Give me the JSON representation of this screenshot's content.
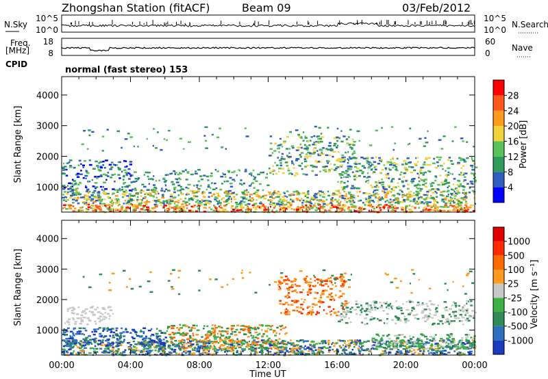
{
  "header": {
    "title": "Zhongshan Station (fitACF)",
    "beam": "Beam 09",
    "date": "03/Feb/2012"
  },
  "top_panels": {
    "nsky_label": "N.Sky",
    "nsearch_label": "N.Search",
    "freq_label_1": "Freq.",
    "freq_label_2": "[MHz]",
    "nave_label": "Nave",
    "cpid_label": "CPID",
    "cpid_value": "normal (fast stereo) 153",
    "noise_ticks": [
      "10^5",
      "10^0"
    ],
    "freq_ticks": [
      "18",
      "8"
    ],
    "nave_ticks": [
      "60",
      "0"
    ]
  },
  "chart_data": [
    {
      "type": "heatmap",
      "panel": "power",
      "xlabel": "",
      "ylabel": "Slant Range [km]",
      "x_ticks": [
        "00:00",
        "04:00",
        "08:00",
        "12:00",
        "16:00",
        "20:00",
        "00:00"
      ],
      "y_ticks": [
        "1000",
        "2000",
        "3000",
        "4000"
      ],
      "ylim": [
        180,
        4600
      ],
      "colorbar_label": "Power [dB]",
      "colorbar_ticks": [
        "4",
        "8",
        "12",
        "16",
        "20",
        "24",
        "28"
      ],
      "colorbar_colors": [
        "#0000ff",
        "#2e5fbf",
        "#2e9c5a",
        "#5bc25b",
        "#f2d23b",
        "#ff9a1f",
        "#ff5a1a",
        "#ff0000"
      ]
    },
    {
      "type": "heatmap",
      "panel": "velocity",
      "xlabel": "Time UT",
      "ylabel": "Slant Range [km]",
      "x_ticks": [
        "00:00",
        "04:00",
        "08:00",
        "12:00",
        "16:00",
        "20:00",
        "00:00"
      ],
      "y_ticks": [
        "1000",
        "2000",
        "3000",
        "4000"
      ],
      "ylim": [
        180,
        4600
      ],
      "colorbar_label": "Velocity [m s⁻¹]",
      "colorbar_ticks": [
        "1000",
        "500",
        "100",
        "25",
        "-25",
        "-100",
        "-500",
        "-1000"
      ],
      "colorbar_colors": [
        "#1a3bbf",
        "#2f70c0",
        "#2e8b57",
        "#3cb043",
        "#c8c8c8",
        "#ff9a1f",
        "#ff6a00",
        "#ff2a00",
        "#e00000"
      ]
    }
  ]
}
